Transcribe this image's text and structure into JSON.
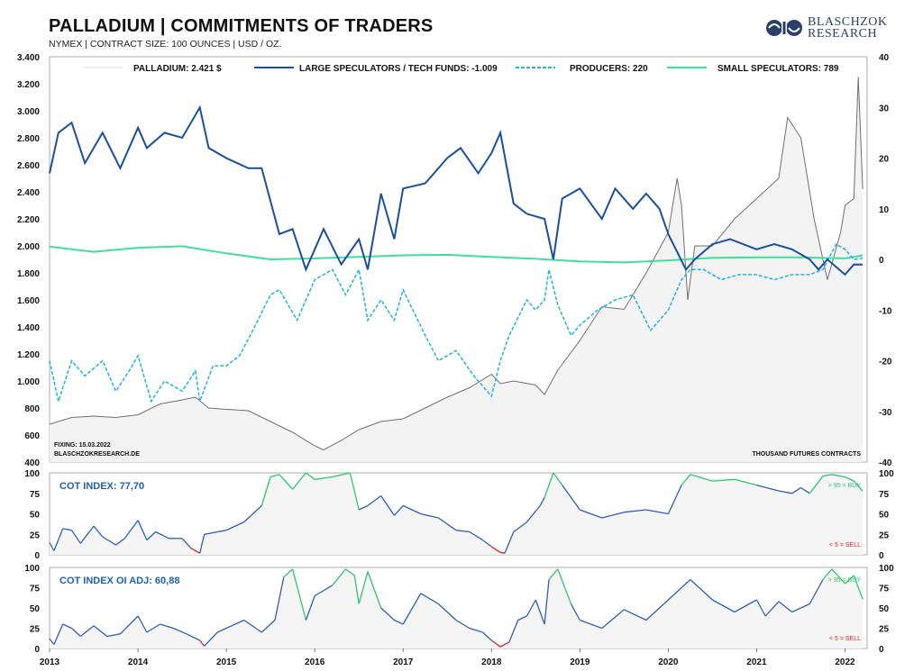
{
  "header": {
    "title": "PALLADIUM | COMMITMENTS OF TRADERS",
    "subtitle": "NYMEX | CONTRACT SIZE: 100 OUNCES | USD / OZ.",
    "brand_line1": "BLASCHZOK",
    "brand_line2": "RESEARCH"
  },
  "colors": {
    "price": "#6f6f6f",
    "large_specs": "#1a4fa0",
    "producers": "#1fb3e0",
    "small_specs": "#3ee0a0",
    "cot_line": "#2e5fb3",
    "buy_zone": "#2fc46e",
    "sell_zone": "#e02020"
  },
  "chart_data": [
    {
      "type": "line",
      "title": "PALLADIUM | COMMITMENTS OF TRADERS",
      "x_axis": {
        "range": [
          2013,
          2022.25
        ],
        "ticks": [
          "2013",
          "2014",
          "2015",
          "2016",
          "2017",
          "2018",
          "2019",
          "2020",
          "2021",
          "2022"
        ]
      },
      "y_left": {
        "range": [
          400,
          3400
        ],
        "ticks": [
          "400",
          "600",
          "800",
          "1.000",
          "1.200",
          "1.400",
          "1.600",
          "1.800",
          "2.000",
          "2.200",
          "2.400",
          "2.600",
          "2.800",
          "3.000",
          "3.200",
          "3.400"
        ]
      },
      "y_right": {
        "range": [
          -40,
          40
        ],
        "ticks": [
          "-40",
          "-30",
          "-20",
          "-10",
          "0",
          "10",
          "20",
          "30",
          "40"
        ],
        "label": "THOUSAND FUTURES CONTRACTS"
      },
      "legend_position": "top",
      "legend": [
        "PALLADIUM: 2.421 $",
        "LARGE SPECULATORS / TECH FUNDS: -1.009",
        "PRODUCERS: 220",
        "SMALL SPECULATORS: 789"
      ],
      "notes": [
        "FIXING: 15.03.2022",
        "BLASCHZOKRESEARCH.DE"
      ],
      "series": [
        {
          "name": "PALLADIUM",
          "axis": "left",
          "x": [
            2013.0,
            2013.25,
            2013.5,
            2013.75,
            2014.0,
            2014.25,
            2014.5,
            2014.65,
            2014.8,
            2015.0,
            2015.25,
            2015.5,
            2015.75,
            2016.0,
            2016.1,
            2016.3,
            2016.5,
            2016.75,
            2017.0,
            2017.25,
            2017.5,
            2017.75,
            2018.0,
            2018.1,
            2018.25,
            2018.5,
            2018.6,
            2018.75,
            2019.0,
            2019.25,
            2019.5,
            2019.75,
            2020.0,
            2020.1,
            2020.15,
            2020.22,
            2020.3,
            2020.5,
            2020.75,
            2021.0,
            2021.25,
            2021.35,
            2021.5,
            2021.65,
            2021.8,
            2021.95,
            2022.0,
            2022.1,
            2022.15,
            2022.2
          ],
          "values": [
            680,
            730,
            740,
            730,
            750,
            830,
            860,
            880,
            800,
            790,
            780,
            700,
            620,
            520,
            490,
            560,
            640,
            700,
            720,
            800,
            880,
            950,
            1050,
            980,
            1000,
            970,
            900,
            1080,
            1300,
            1550,
            1530,
            1800,
            2100,
            2500,
            2300,
            1600,
            2000,
            2000,
            2200,
            2350,
            2500,
            2950,
            2800,
            2200,
            1750,
            2100,
            2300,
            2350,
            3250,
            2421
          ]
        },
        {
          "name": "LARGE SPECULATORS / TECH FUNDS",
          "axis": "right",
          "x": [
            2013.0,
            2013.1,
            2013.25,
            2013.4,
            2013.6,
            2013.8,
            2014.0,
            2014.1,
            2014.3,
            2014.5,
            2014.7,
            2014.8,
            2015.0,
            2015.25,
            2015.4,
            2015.6,
            2015.75,
            2015.9,
            2016.1,
            2016.3,
            2016.5,
            2016.6,
            2016.75,
            2016.9,
            2017.0,
            2017.25,
            2017.5,
            2017.65,
            2017.85,
            2018.0,
            2018.1,
            2018.25,
            2018.4,
            2018.6,
            2018.7,
            2018.8,
            2019.0,
            2019.25,
            2019.4,
            2019.6,
            2019.75,
            2019.9,
            2020.0,
            2020.2,
            2020.3,
            2020.5,
            2020.7,
            2021.0,
            2021.2,
            2021.4,
            2021.6,
            2021.7,
            2021.8,
            2022.0,
            2022.1,
            2022.2
          ],
          "values": [
            17,
            25,
            27,
            19,
            25,
            18,
            26,
            22,
            25,
            24,
            30,
            22,
            20,
            18,
            18,
            5,
            6,
            -2,
            6,
            -1,
            4,
            -2,
            13,
            4,
            14,
            15,
            20,
            22,
            17,
            21,
            25,
            11,
            9,
            8,
            0,
            12,
            14,
            8,
            14,
            10,
            13,
            10,
            5,
            -2,
            0,
            3,
            4,
            2,
            3,
            2,
            0,
            -2,
            0,
            -3,
            -1,
            -1.009
          ]
        },
        {
          "name": "PRODUCERS",
          "axis": "right",
          "x": [
            2013.0,
            2013.1,
            2013.25,
            2013.4,
            2013.6,
            2013.75,
            2013.9,
            2014.0,
            2014.15,
            2014.3,
            2014.5,
            2014.65,
            2014.7,
            2014.85,
            2015.0,
            2015.15,
            2015.3,
            2015.5,
            2015.6,
            2015.8,
            2016.0,
            2016.2,
            2016.35,
            2016.5,
            2016.6,
            2016.75,
            2016.9,
            2017.0,
            2017.25,
            2017.4,
            2017.6,
            2017.8,
            2018.0,
            2018.1,
            2018.2,
            2018.4,
            2018.5,
            2018.6,
            2018.65,
            2018.75,
            2018.9,
            2019.0,
            2019.2,
            2019.4,
            2019.6,
            2019.8,
            2020.0,
            2020.15,
            2020.25,
            2020.4,
            2020.6,
            2020.8,
            2021.0,
            2021.2,
            2021.4,
            2021.6,
            2021.75,
            2021.9,
            2022.0,
            2022.1,
            2022.2
          ],
          "values": [
            -20,
            -28,
            -20,
            -23,
            -20,
            -26,
            -22,
            -19,
            -28,
            -24,
            -26,
            -22,
            -28,
            -21,
            -21,
            -19,
            -14,
            -7,
            -6,
            -12,
            -4,
            -2,
            -7,
            -2,
            -12,
            -8,
            -12,
            -6,
            -15,
            -20,
            -18,
            -23,
            -27,
            -20,
            -15,
            -8,
            -10,
            -8,
            -2,
            -9,
            -15,
            -13,
            -10,
            -8,
            -7,
            -14,
            -10,
            -4,
            -2,
            -2,
            -4,
            -3,
            -3,
            -4,
            -3,
            -3,
            -2,
            3,
            2,
            0,
            0.22
          ]
        },
        {
          "name": "SMALL SPECULATORS",
          "axis": "right",
          "x": [
            2013.0,
            2013.5,
            2014.0,
            2014.5,
            2015.0,
            2015.5,
            2016.0,
            2016.5,
            2017.0,
            2017.5,
            2018.0,
            2018.5,
            2019.0,
            2019.5,
            2020.0,
            2020.5,
            2021.0,
            2021.5,
            2022.0,
            2022.2
          ],
          "values": [
            2.5,
            1.5,
            2.3,
            2.6,
            1.2,
            0,
            0.2,
            0.5,
            0.8,
            0.9,
            0.5,
            0.1,
            -0.4,
            -0.6,
            -0.2,
            0.3,
            0.4,
            0.4,
            0.2,
            0.789
          ]
        }
      ]
    },
    {
      "type": "line",
      "title": "COT INDEX: 77,70",
      "y_axis": {
        "range": [
          0,
          100
        ],
        "ticks": [
          "0",
          "25",
          "50",
          "75",
          "100"
        ]
      },
      "thresholds": {
        "buy": 95,
        "sell": 5,
        "buy_label": "> 95 = BUY",
        "sell_label": "< 5 = SELL"
      },
      "x": [
        2013.0,
        2013.05,
        2013.15,
        2013.25,
        2013.35,
        2013.5,
        2013.6,
        2013.75,
        2013.85,
        2014.0,
        2014.1,
        2014.2,
        2014.35,
        2014.5,
        2014.6,
        2014.7,
        2014.75,
        2014.9,
        2015.0,
        2015.2,
        2015.4,
        2015.5,
        2015.6,
        2015.75,
        2015.9,
        2016.0,
        2016.2,
        2016.4,
        2016.5,
        2016.6,
        2016.75,
        2016.9,
        2017.0,
        2017.2,
        2017.4,
        2017.6,
        2017.75,
        2017.9,
        2018.0,
        2018.1,
        2018.15,
        2018.25,
        2018.4,
        2018.55,
        2018.6,
        2018.7,
        2018.8,
        2019.0,
        2019.25,
        2019.5,
        2019.75,
        2020.0,
        2020.15,
        2020.25,
        2020.5,
        2020.75,
        2021.0,
        2021.25,
        2021.4,
        2021.5,
        2021.6,
        2021.75,
        2021.85,
        2022.0,
        2022.1,
        2022.2
      ],
      "values": [
        15,
        5,
        32,
        30,
        14,
        35,
        22,
        12,
        20,
        42,
        18,
        28,
        20,
        20,
        8,
        2,
        25,
        28,
        30,
        40,
        60,
        95,
        98,
        80,
        100,
        92,
        95,
        100,
        55,
        60,
        72,
        48,
        60,
        50,
        45,
        30,
        28,
        18,
        10,
        3,
        2,
        28,
        40,
        60,
        70,
        100,
        85,
        55,
        45,
        52,
        55,
        50,
        85,
        98,
        90,
        92,
        85,
        78,
        75,
        82,
        75,
        96,
        98,
        95,
        90,
        77.7
      ]
    },
    {
      "type": "line",
      "title": "COT INDEX OI ADJ: 60,88",
      "y_axis": {
        "range": [
          0,
          100
        ],
        "ticks": [
          "0",
          "25",
          "50",
          "75",
          "100"
        ]
      },
      "thresholds": {
        "buy": 95,
        "sell": 5,
        "buy_label": "> 95 = BUY",
        "sell_label": "< 5 = SELL"
      },
      "x": [
        2013.0,
        2013.05,
        2013.15,
        2013.25,
        2013.35,
        2013.5,
        2013.65,
        2013.8,
        2014.0,
        2014.1,
        2014.25,
        2014.4,
        2014.55,
        2014.7,
        2014.75,
        2014.9,
        2015.0,
        2015.2,
        2015.4,
        2015.55,
        2015.65,
        2015.75,
        2015.9,
        2016.0,
        2016.2,
        2016.35,
        2016.45,
        2016.5,
        2016.6,
        2016.75,
        2016.9,
        2017.0,
        2017.2,
        2017.4,
        2017.6,
        2017.75,
        2017.9,
        2018.0,
        2018.1,
        2018.2,
        2018.3,
        2018.4,
        2018.5,
        2018.6,
        2018.65,
        2018.75,
        2018.9,
        2019.0,
        2019.25,
        2019.5,
        2019.75,
        2020.0,
        2020.15,
        2020.25,
        2020.5,
        2020.75,
        2021.0,
        2021.1,
        2021.25,
        2021.4,
        2021.6,
        2021.75,
        2021.85,
        2022.0,
        2022.1,
        2022.2
      ],
      "values": [
        12,
        5,
        30,
        25,
        15,
        28,
        15,
        18,
        40,
        20,
        30,
        25,
        18,
        10,
        3,
        20,
        25,
        35,
        20,
        35,
        88,
        98,
        35,
        65,
        78,
        98,
        90,
        55,
        95,
        50,
        35,
        30,
        68,
        55,
        35,
        25,
        20,
        10,
        2,
        8,
        35,
        40,
        60,
        30,
        85,
        98,
        55,
        35,
        25,
        48,
        35,
        60,
        75,
        85,
        60,
        45,
        60,
        40,
        58,
        45,
        55,
        85,
        98,
        80,
        90,
        60.88
      ]
    }
  ],
  "axes_labels": {
    "x_ticks": [
      "2013",
      "2014",
      "2015",
      "2016",
      "2017",
      "2018",
      "2019",
      "2020",
      "2021",
      "2022"
    ],
    "sub_ticks": [
      "0",
      "25",
      "50",
      "75",
      "100"
    ]
  }
}
